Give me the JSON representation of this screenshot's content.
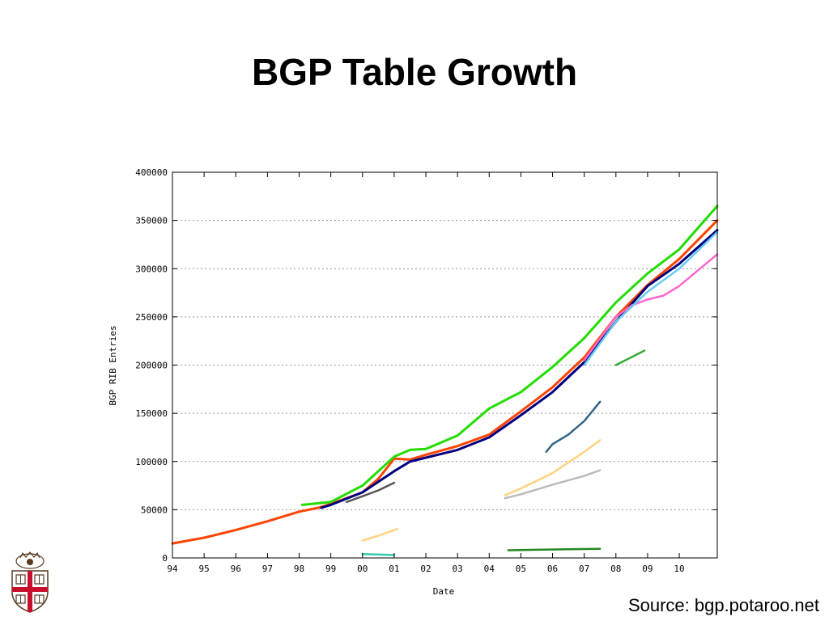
{
  "slide": {
    "title": "BGP Table Growth",
    "source": "Source: bgp.potaroo.net",
    "logo_icon": "university-shield-icon"
  },
  "chart_data": {
    "type": "line",
    "title": "",
    "xlabel": "Date",
    "ylabel": "BGP RIB Entries",
    "xlim": [
      1994.0,
      2011.2
    ],
    "ylim": [
      0,
      400000
    ],
    "grid": "horizontal-dashed",
    "x_ticks": [
      1994,
      1995,
      1996,
      1997,
      1998,
      1999,
      2000,
      2001,
      2002,
      2003,
      2004,
      2005,
      2006,
      2007,
      2008,
      2009,
      2010
    ],
    "x_tick_labels": [
      "94",
      "95",
      "96",
      "97",
      "98",
      "99",
      "00",
      "01",
      "02",
      "03",
      "04",
      "05",
      "06",
      "07",
      "08",
      "09",
      "10"
    ],
    "y_ticks": [
      0,
      50000,
      100000,
      150000,
      200000,
      250000,
      300000,
      350000,
      400000
    ],
    "y_tick_labels": [
      "0",
      "50000",
      "100000",
      "150000",
      "200000",
      "250000",
      "300000",
      "350000",
      "400000"
    ],
    "series": [
      {
        "color": "#ff4400",
        "x": [
          1994.0,
          1995.0,
          1996.0,
          1997.0,
          1998.0,
          1998.6,
          1999.0,
          2000.0,
          2000.5,
          2001.0,
          2001.5,
          2002.0,
          2003.0,
          2004.0,
          2005.0,
          2006.0,
          2007.0,
          2008.0,
          2009.0,
          2010.0,
          2011.2
        ],
        "y": [
          15000,
          21000,
          29000,
          38000,
          48000,
          52000,
          56000,
          68000,
          82000,
          103000,
          102000,
          107000,
          116000,
          128000,
          152000,
          177000,
          208000,
          250000,
          283000,
          310000,
          350000
        ]
      },
      {
        "color": "#22dd00",
        "x": [
          1998.1,
          1999.0,
          2000.0,
          2001.0,
          2001.5,
          2002.0,
          2003.0,
          2004.0,
          2005.0,
          2006.0,
          2007.0,
          2008.0,
          2009.0,
          2010.0,
          2011.2
        ],
        "y": [
          55000,
          58000,
          75000,
          105000,
          112000,
          113000,
          127000,
          155000,
          172000,
          198000,
          228000,
          265000,
          295000,
          320000,
          365000
        ]
      },
      {
        "color": "#000080",
        "x": [
          1998.7,
          1999.0,
          2000.0,
          2001.0,
          2001.5,
          2002.0,
          2003.0,
          2004.0,
          2005.0,
          2006.0,
          2007.0,
          2008.0,
          2009.0,
          2010.0,
          2011.2
        ],
        "y": [
          52000,
          55000,
          68000,
          90000,
          100000,
          104000,
          112000,
          125000,
          148000,
          172000,
          203000,
          245000,
          282000,
          305000,
          340000
        ]
      },
      {
        "color": "#ff66cc",
        "x": [
          2007.0,
          2008.0,
          2008.5,
          2009.0,
          2009.5,
          2010.0,
          2011.2
        ],
        "y": [
          205000,
          250000,
          262000,
          268000,
          272000,
          282000,
          315000
        ]
      },
      {
        "color": "#66ccee",
        "x": [
          2007.0,
          2008.0,
          2009.0,
          2010.0,
          2011.2
        ],
        "y": [
          200000,
          245000,
          276000,
          300000,
          338000
        ]
      },
      {
        "color": "#ffd27f",
        "x": [
          2004.5,
          2005.0,
          2006.0,
          2007.0,
          2007.5
        ],
        "y": [
          65000,
          72000,
          88000,
          110000,
          122000
        ]
      },
      {
        "color": "#bbbbbb",
        "x": [
          2004.5,
          2005.0,
          2006.0,
          2007.0,
          2007.5
        ],
        "y": [
          62000,
          66000,
          76000,
          85000,
          91000
        ]
      },
      {
        "color": "#336688",
        "x": [
          2005.8,
          2006.0,
          2006.5,
          2007.0,
          2007.5
        ],
        "y": [
          110000,
          118000,
          128000,
          142000,
          162000
        ]
      },
      {
        "color": "#228822",
        "x": [
          2004.6,
          2005.5,
          2006.5,
          2007.5
        ],
        "y": [
          8000,
          8500,
          9000,
          9500
        ]
      },
      {
        "color": "#ffd27f",
        "x": [
          2000.0,
          2000.5,
          2001.1
        ],
        "y": [
          18000,
          23000,
          30000
        ]
      },
      {
        "color": "#33aa33",
        "x": [
          2008.0,
          2008.9
        ],
        "y": [
          200000,
          215000
        ]
      },
      {
        "color": "#555555",
        "x": [
          1999.5,
          2000.0,
          2000.5,
          2001.0
        ],
        "y": [
          58000,
          64000,
          70000,
          78000
        ]
      },
      {
        "color": "#33ccaa",
        "x": [
          2000.0,
          2001.0
        ],
        "y": [
          4000,
          3000
        ]
      }
    ]
  }
}
